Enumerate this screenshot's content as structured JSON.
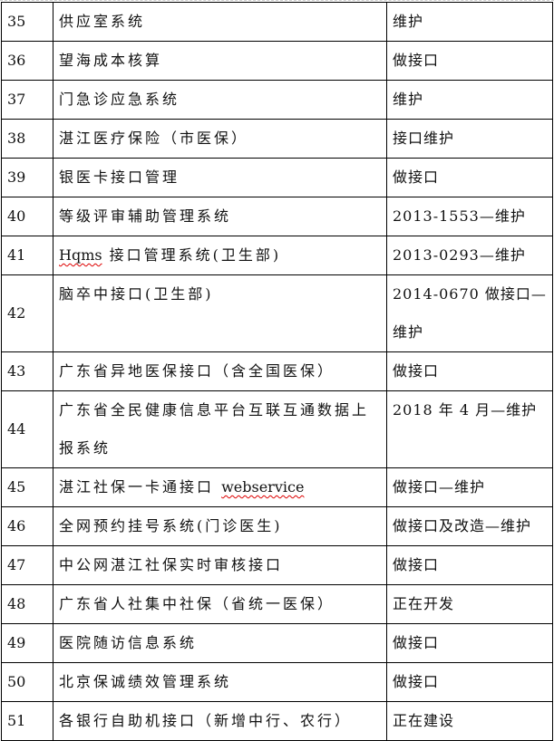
{
  "table": {
    "rows": [
      {
        "no": "35",
        "name": "供应室系统",
        "status": "维护"
      },
      {
        "no": "36",
        "name": "望海成本核算",
        "status": "做接口"
      },
      {
        "no": "37",
        "name": "门急诊应急系统",
        "status": "维护"
      },
      {
        "no": "38",
        "name": "湛江医疗保险（市医保）",
        "status": "接口维护"
      },
      {
        "no": "39",
        "name": "银医卡接口管理",
        "status": "做接口"
      },
      {
        "no": "40",
        "name": "等级评审辅助管理系统",
        "status": "2013-1553—维护"
      },
      {
        "no": "41",
        "name_prefix": "Hqms",
        "name": " 接口管理系统(卫生部)",
        "status": "2013-0293—维护"
      },
      {
        "no": "42",
        "name": "脑卒中接口(卫生部)",
        "status": "2014-0670 做接口—维护",
        "tall": true
      },
      {
        "no": "43",
        "name": "广东省异地医保接口（含全国医保）",
        "status": "做接口"
      },
      {
        "no": "44",
        "name": "广东省全民健康信息平台互联互通数据上报系统",
        "status": "2018 年 4 月—维护",
        "tall": true
      },
      {
        "no": "45",
        "name": "湛江社保一卡通接口 ",
        "name_suffix": "webservice",
        "status": "做接口—维护"
      },
      {
        "no": "46",
        "name": "全网预约挂号系统(门诊医生)",
        "status": "做接口及改造—维护"
      },
      {
        "no": "47",
        "name": "中公网湛江社保实时审核接口",
        "status": "做接口"
      },
      {
        "no": "48",
        "name": "广东省人社集中社保（省统一医保）",
        "status": "正在开发"
      },
      {
        "no": "49",
        "name": "医院随访信息系统",
        "status": "做接口"
      },
      {
        "no": "50",
        "name": "北京保诚绩效管理系统",
        "status": "做接口"
      },
      {
        "no": "51",
        "name": "各银行自助机接口（新增中行、农行）",
        "status": "正在建设"
      }
    ]
  }
}
